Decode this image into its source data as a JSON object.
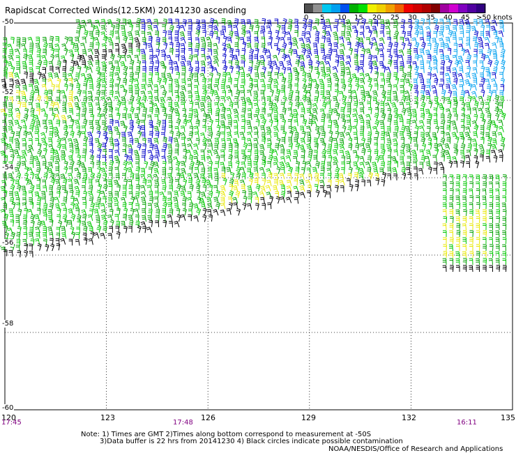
{
  "title": "Rapidscat Corrected Winds(12.5KM) 20141230 ascending",
  "colorbar": {
    "labels": [
      "0",
      "5",
      "10",
      "15",
      "20",
      "25",
      "30",
      "35",
      "40",
      "45",
      ">50 knots"
    ],
    "colors": [
      "#505050",
      "#909090",
      "#00c8f0",
      "#00a0f0",
      "#0050f0",
      "#00b000",
      "#00e000",
      "#f0f000",
      "#f0d000",
      "#f0a000",
      "#f06000",
      "#f00000",
      "#d00000",
      "#b00000",
      "#800000",
      "#a000a0",
      "#d000d0",
      "#8000c0",
      "#5000a0",
      "#300080"
    ]
  },
  "lat_labels": [
    "-50",
    "-52",
    "-54",
    "-56",
    "-58",
    "-60"
  ],
  "lon_labels": [
    "120",
    "123",
    "126",
    "129",
    "132",
    "135"
  ],
  "time_labels": [
    "17:45",
    "17:48",
    "16:11"
  ],
  "notes": {
    "line1": "Note: 1) Times are GMT 2)Times along bottom correspond to measurement at -50S",
    "line2": "3)Data buffer is 22 hrs from 20141230 4) Black circles indicate possible contamination",
    "line3": "NOAA/NESDIS/Office of Research and Applications"
  },
  "chart_data": {
    "type": "wind_barb_map",
    "title": "Rapidscat Corrected Winds(12.5KM) 20141230 ascending",
    "lon_range": [
      120,
      135
    ],
    "lat_range": [
      -60,
      -50
    ],
    "units": "knots",
    "legend": "top-right colorbar",
    "speed_classes": [
      {
        "range": "0-10",
        "color": "#00a0f0"
      },
      {
        "range": "10-15",
        "color": "#0000c8"
      },
      {
        "range": "15-20",
        "color": "#00b000"
      },
      {
        "range": "20-25",
        "color": "#f0f000"
      },
      {
        "range": "contaminated",
        "color": "#000000"
      }
    ]
  }
}
